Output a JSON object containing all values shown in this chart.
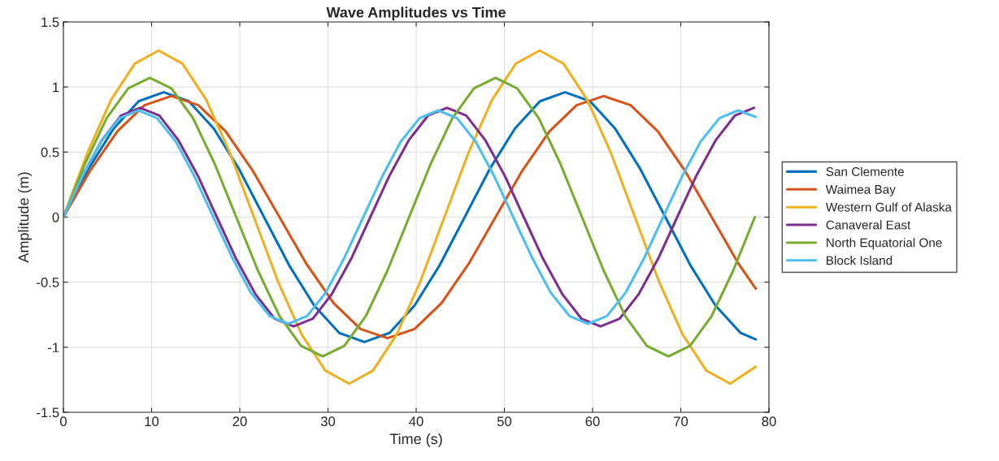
{
  "chart_data": {
    "type": "line",
    "title": "Wave Amplitudes vs Time",
    "xlabel": "Time (s)",
    "ylabel": "Amplitude (m)",
    "xlim": [
      0,
      80
    ],
    "xticks": [
      0,
      10,
      20,
      30,
      40,
      50,
      60,
      70,
      80
    ],
    "ylim": [
      -1.5,
      1.5
    ],
    "yticks": [
      -1.5,
      -1,
      -0.5,
      0,
      0.5,
      1,
      1.5
    ],
    "grid": true,
    "legend": "right",
    "line_style": "solid",
    "marker": "none",
    "series": [
      {
        "name": "San Clemente",
        "color": "#0072bd",
        "x": [
          0,
          2.84,
          5.69,
          8.53,
          11.38,
          14.22,
          17.06,
          19.91,
          22.75,
          25.59,
          28.44,
          31.28,
          34.13,
          36.97,
          39.81,
          42.66,
          45.5,
          48.34,
          51.19,
          54.03,
          56.88,
          59.72,
          62.56,
          65.41,
          68.25,
          71.09,
          73.94,
          76.78,
          78.5
        ],
        "values": [
          0,
          0.37,
          0.68,
          0.89,
          0.96,
          0.89,
          0.68,
          0.37,
          0,
          -0.37,
          -0.68,
          -0.89,
          -0.96,
          -0.89,
          -0.68,
          -0.37,
          0,
          0.37,
          0.68,
          0.89,
          0.96,
          0.89,
          0.68,
          0.37,
          0,
          -0.37,
          -0.68,
          -0.89,
          -0.94
        ]
      },
      {
        "name": "Waimea Bay",
        "color": "#d95319",
        "x": [
          0,
          3.06,
          6.13,
          9.19,
          12.25,
          15.31,
          18.38,
          21.44,
          24.5,
          27.56,
          30.63,
          33.69,
          36.75,
          39.81,
          42.88,
          45.94,
          49,
          52.06,
          55.13,
          58.19,
          61.25,
          64.31,
          67.38,
          70.44,
          73.5,
          76.56,
          78.5
        ],
        "values": [
          0,
          0.36,
          0.66,
          0.86,
          0.93,
          0.86,
          0.66,
          0.36,
          0,
          -0.36,
          -0.66,
          -0.86,
          -0.93,
          -0.86,
          -0.66,
          -0.36,
          0,
          0.36,
          0.66,
          0.86,
          0.93,
          0.86,
          0.66,
          0.36,
          0,
          -0.36,
          -0.55
        ]
      },
      {
        "name": "Western Gulf of Alaska",
        "color": "#edb120",
        "x": [
          0,
          2.7,
          5.4,
          8.1,
          10.8,
          13.5,
          16.2,
          18.9,
          21.6,
          24.3,
          27,
          29.7,
          32.4,
          35.1,
          37.8,
          40.5,
          43.2,
          45.9,
          48.6,
          51.3,
          54,
          56.7,
          59.4,
          62.1,
          64.8,
          67.5,
          70.2,
          72.9,
          75.6,
          78.5
        ],
        "values": [
          0,
          0.49,
          0.9,
          1.18,
          1.28,
          1.18,
          0.9,
          0.49,
          0,
          -0.49,
          -0.9,
          -1.18,
          -1.28,
          -1.18,
          -0.9,
          -0.49,
          0,
          0.49,
          0.9,
          1.18,
          1.28,
          1.18,
          0.9,
          0.49,
          0,
          -0.49,
          -0.9,
          -1.18,
          -1.28,
          -1.15
        ]
      },
      {
        "name": "Canaveral East",
        "color": "#7e2f8e",
        "x": [
          0,
          2.18,
          4.35,
          6.53,
          8.7,
          10.88,
          13.05,
          15.23,
          17.4,
          19.58,
          21.75,
          23.93,
          26.1,
          28.28,
          30.45,
          32.63,
          34.8,
          36.98,
          39.15,
          41.33,
          43.5,
          45.68,
          47.85,
          50.03,
          52.2,
          54.38,
          56.55,
          58.73,
          60.9,
          63.08,
          65.25,
          67.43,
          69.6,
          71.78,
          73.95,
          76.13,
          78.3
        ],
        "values": [
          0,
          0.32,
          0.59,
          0.78,
          0.84,
          0.78,
          0.59,
          0.32,
          0,
          -0.32,
          -0.59,
          -0.78,
          -0.84,
          -0.78,
          -0.59,
          -0.32,
          0,
          0.32,
          0.59,
          0.78,
          0.84,
          0.78,
          0.59,
          0.32,
          0,
          -0.32,
          -0.59,
          -0.78,
          -0.84,
          -0.78,
          -0.59,
          -0.32,
          0,
          0.32,
          0.59,
          0.78,
          0.84
        ]
      },
      {
        "name": "North Equatorial One",
        "color": "#77ac30",
        "x": [
          0,
          2.45,
          4.9,
          7.35,
          9.8,
          12.25,
          14.7,
          17.15,
          19.6,
          22.05,
          24.5,
          26.95,
          29.4,
          31.85,
          34.3,
          36.75,
          39.2,
          41.65,
          44.1,
          46.55,
          49,
          51.45,
          53.9,
          56.35,
          58.8,
          61.25,
          63.7,
          66.15,
          68.6,
          71.05,
          73.5,
          75.95,
          78.4
        ],
        "values": [
          0,
          0.41,
          0.76,
          0.99,
          1.07,
          0.99,
          0.76,
          0.41,
          0,
          -0.41,
          -0.76,
          -0.99,
          -1.07,
          -0.99,
          -0.76,
          -0.41,
          0,
          0.41,
          0.76,
          0.99,
          1.07,
          0.99,
          0.76,
          0.41,
          0,
          -0.41,
          -0.76,
          -0.99,
          -1.07,
          -0.99,
          -0.76,
          -0.41,
          0
        ]
      },
      {
        "name": "Block Island",
        "color": "#4dbeee",
        "x": [
          0,
          2.13,
          4.25,
          6.38,
          8.5,
          10.63,
          12.75,
          14.88,
          17,
          19.13,
          21.25,
          23.38,
          25.5,
          27.63,
          29.75,
          31.88,
          34,
          36.13,
          38.25,
          40.38,
          42.5,
          44.63,
          46.75,
          48.88,
          51,
          53.13,
          55.25,
          57.38,
          59.5,
          61.63,
          63.75,
          65.88,
          68,
          70.13,
          72.25,
          74.38,
          76.5,
          78.5
        ],
        "values": [
          0,
          0.31,
          0.58,
          0.76,
          0.82,
          0.76,
          0.58,
          0.31,
          0,
          -0.31,
          -0.58,
          -0.76,
          -0.82,
          -0.76,
          -0.58,
          -0.31,
          0,
          0.31,
          0.58,
          0.76,
          0.82,
          0.76,
          0.58,
          0.31,
          0,
          -0.31,
          -0.58,
          -0.76,
          -0.82,
          -0.76,
          -0.58,
          -0.31,
          0,
          0.31,
          0.58,
          0.76,
          0.82,
          0.77
        ]
      }
    ]
  }
}
